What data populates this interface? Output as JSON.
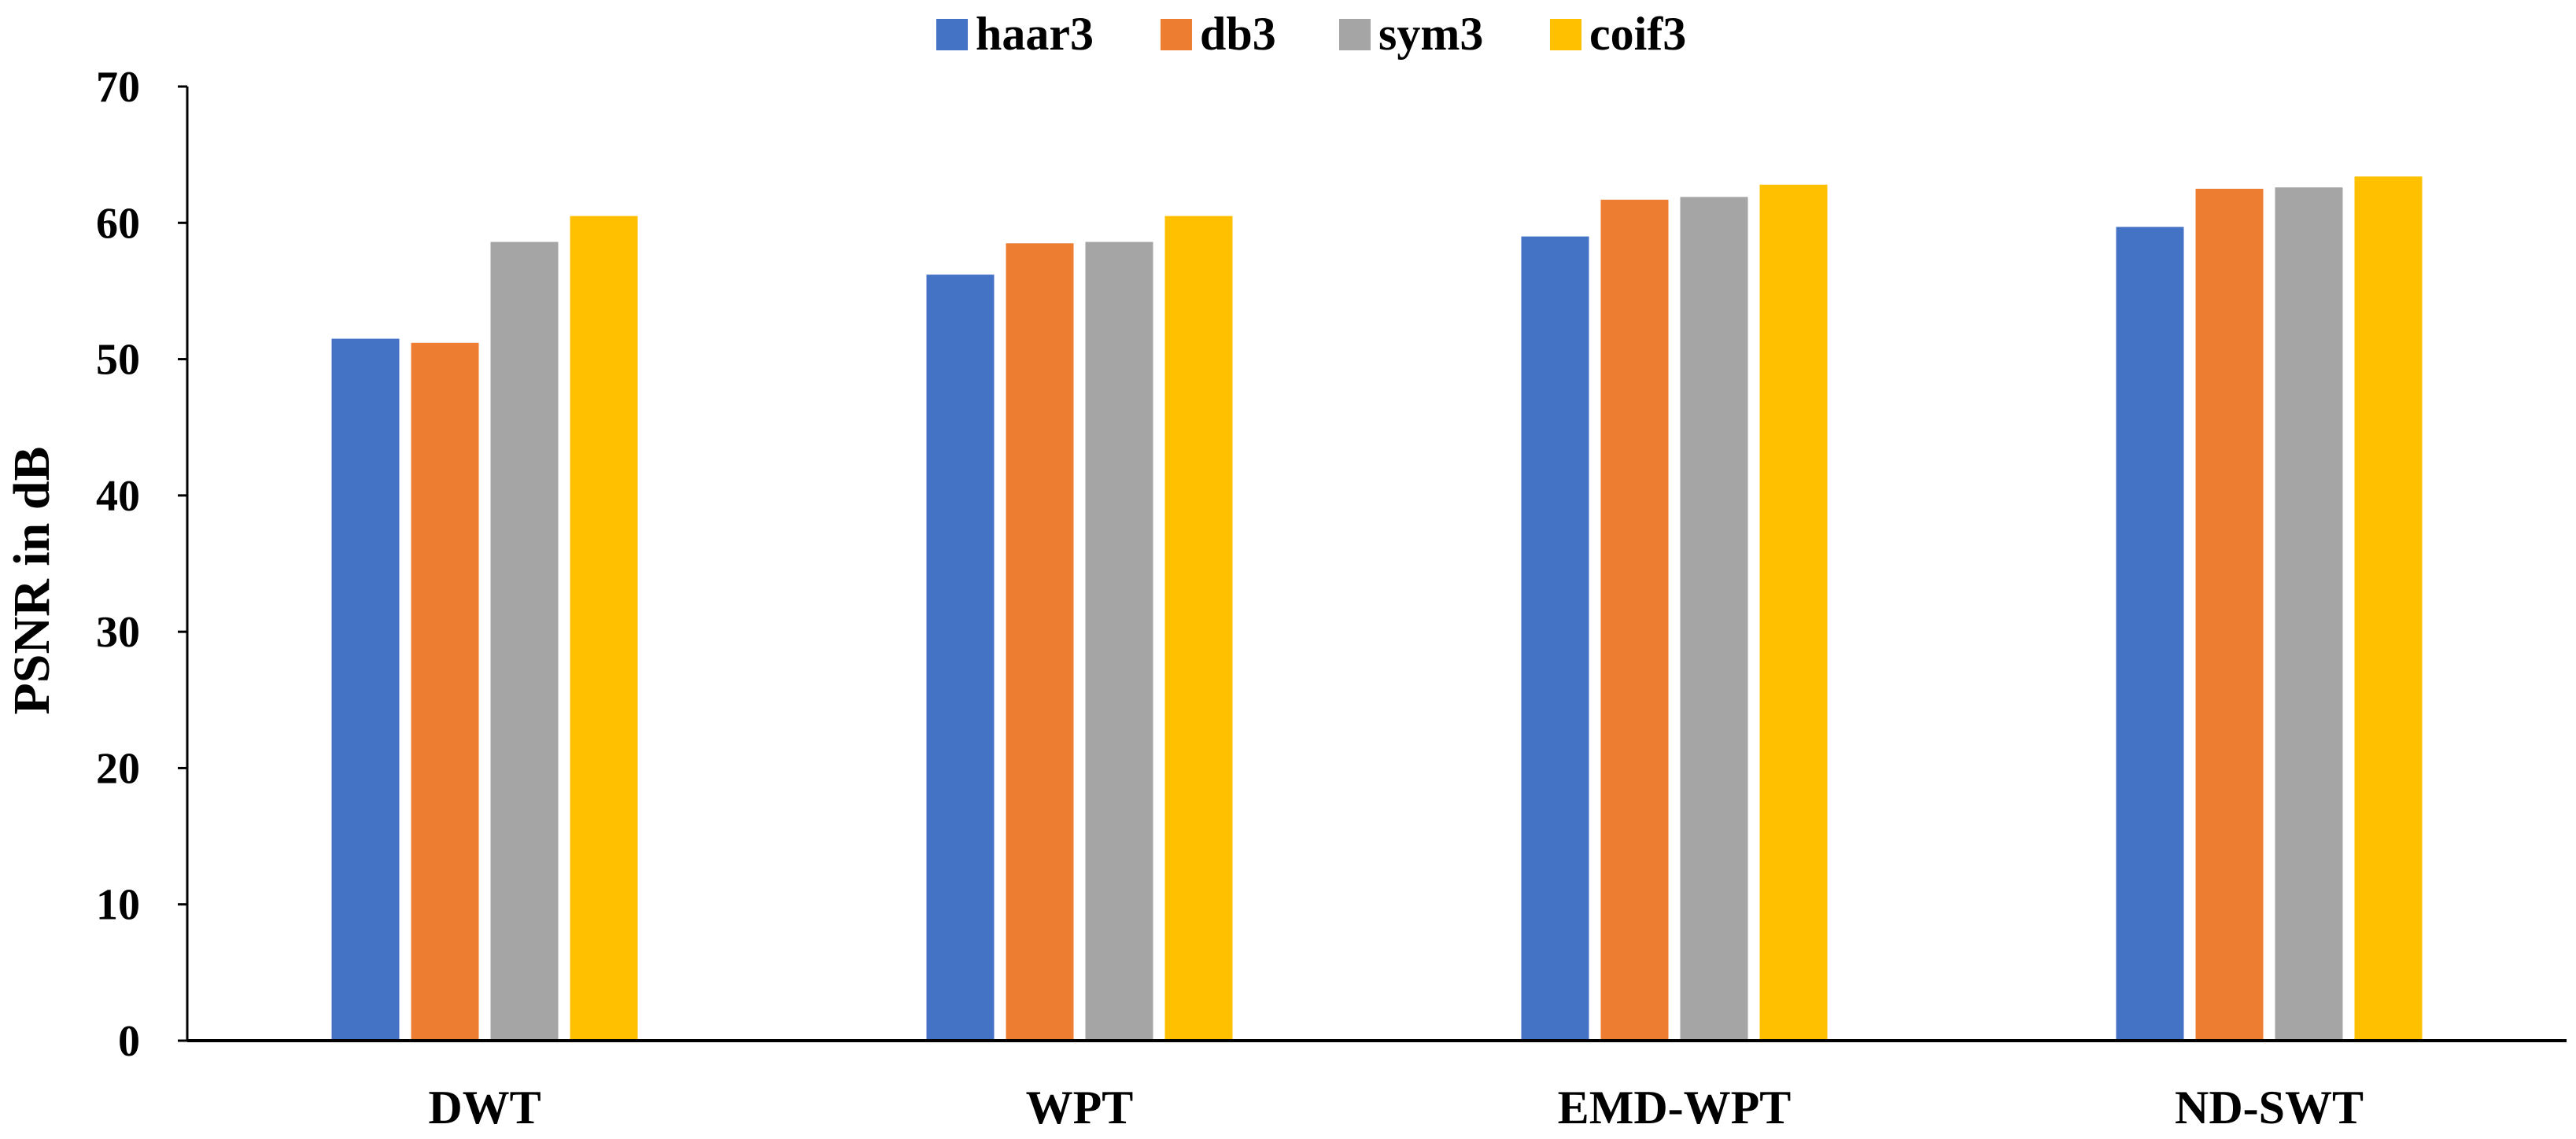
{
  "chart_data": {
    "type": "bar",
    "title": "",
    "xlabel": "",
    "ylabel": "PSNR in dB",
    "ylim": [
      0,
      70
    ],
    "yticks": [
      0,
      10,
      20,
      30,
      40,
      50,
      60,
      70
    ],
    "grid": false,
    "legend_position": "top-center",
    "categories": [
      "DWT",
      "WPT",
      "EMD-WPT",
      "ND-SWT"
    ],
    "series": [
      {
        "name": "haar3",
        "color": "#4472C4",
        "values": [
          51.5,
          56.2,
          59.0,
          59.7
        ]
      },
      {
        "name": "db3",
        "color": "#ED7D31",
        "values": [
          51.2,
          58.5,
          61.7,
          62.5
        ]
      },
      {
        "name": "sym3",
        "color": "#A5A5A5",
        "values": [
          58.6,
          58.6,
          61.9,
          62.6
        ]
      },
      {
        "name": "coif3",
        "color": "#FFC000",
        "values": [
          60.5,
          60.5,
          62.8,
          63.4
        ]
      }
    ]
  }
}
